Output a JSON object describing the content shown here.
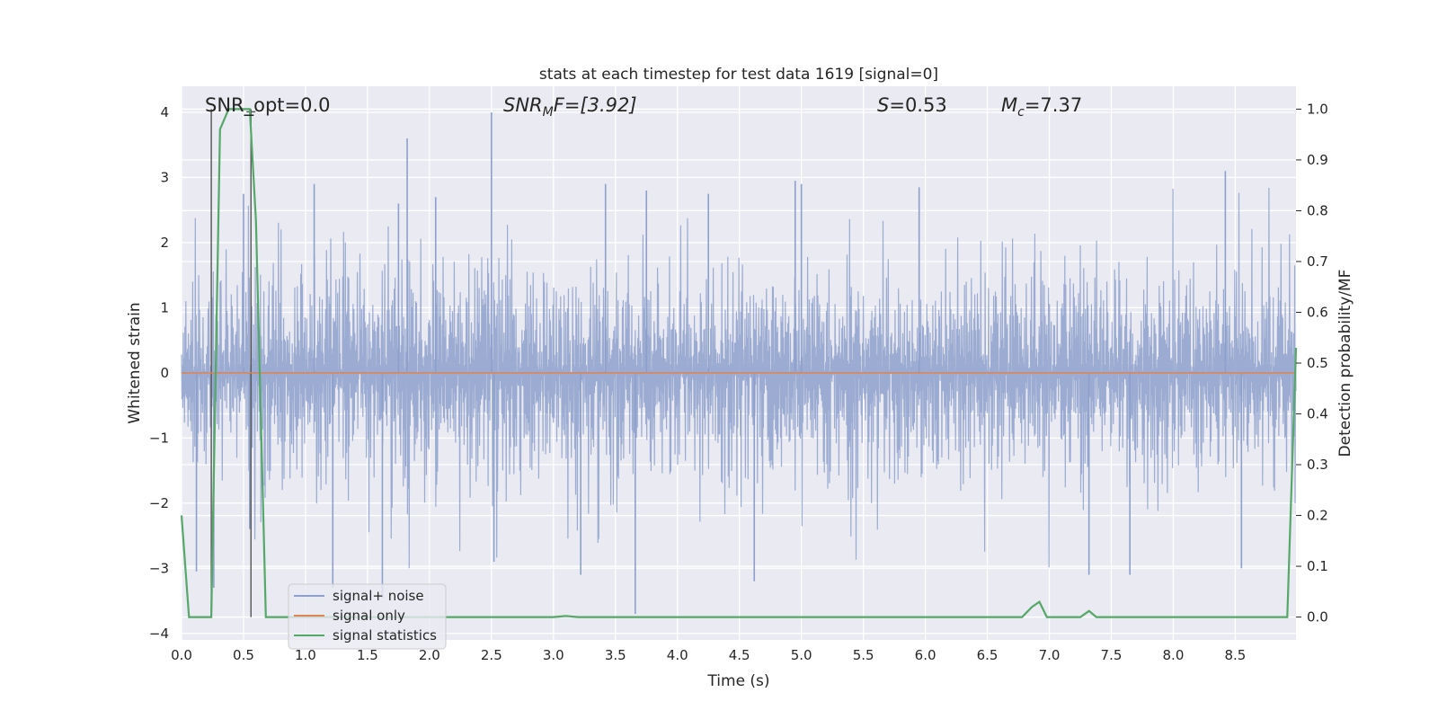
{
  "chart_data": {
    "type": "line",
    "title": "stats at each timestep for test data 1619 [signal=0]",
    "xlabel": "Time (s)",
    "ylabel": "Whitened strain",
    "y2label": "Detection probability/MF",
    "xlim": [
      0.0,
      8.99
    ],
    "ylim": [
      -4.1,
      4.4
    ],
    "y2lim": [
      -0.045,
      1.045
    ],
    "xticks": [
      "0.0",
      "0.5",
      "1.0",
      "1.5",
      "2.0",
      "2.5",
      "3.0",
      "3.5",
      "4.0",
      "4.5",
      "5.0",
      "5.5",
      "6.0",
      "6.5",
      "7.0",
      "7.5",
      "8.0",
      "8.5"
    ],
    "yticks": [
      "4",
      "3",
      "2",
      "1",
      "0",
      "−1",
      "−2",
      "−3",
      "−4"
    ],
    "y2ticks": [
      "1.0",
      "0.9",
      "0.8",
      "0.7",
      "0.6",
      "0.5",
      "0.4",
      "0.3",
      "0.2",
      "0.1",
      "0.0"
    ],
    "grid": true,
    "legend_position": "lower-left",
    "annotations": {
      "snr_opt": "SNR_opt=0.0",
      "snr_mf_sym": "SNR",
      "snr_mf_sub": "M",
      "snr_mf_rest": "F=[3.92]",
      "s_sym": "S",
      "s_rest": "=0.53",
      "mc_sym": "M",
      "mc_sub": "c",
      "mc_rest": "=7.37"
    },
    "markers": {
      "t_peak": 0.56,
      "t_start": 0.24
    },
    "series": [
      {
        "name": "signal+ noise",
        "color": "#8da0cb",
        "sample_rate_hz": 4096,
        "envelope_rms": 0.85,
        "spikes": [
          [
            0.12,
            -3.05
          ],
          [
            0.26,
            -3.3
          ],
          [
            0.5,
            2.75
          ],
          [
            0.55,
            -2.4
          ],
          [
            1.07,
            2.9
          ],
          [
            1.22,
            -3.3
          ],
          [
            1.62,
            -3.45
          ],
          [
            1.75,
            2.6
          ],
          [
            1.82,
            3.6
          ],
          [
            2.05,
            2.7
          ],
          [
            2.5,
            4.0
          ],
          [
            2.52,
            -2.9
          ],
          [
            3.22,
            -3.1
          ],
          [
            3.42,
            2.9
          ],
          [
            3.66,
            -3.7
          ],
          [
            3.75,
            2.8
          ],
          [
            4.25,
            2.75
          ],
          [
            4.62,
            -3.2
          ],
          [
            4.95,
            2.95
          ],
          [
            5.0,
            2.9
          ],
          [
            5.95,
            2.85
          ],
          [
            7.32,
            -3.1
          ],
          [
            7.65,
            -3.1
          ],
          [
            8.42,
            3.1
          ],
          [
            8.55,
            -3.0
          ]
        ]
      },
      {
        "name": "signal only",
        "color": "#dd8452",
        "values": "flat zero"
      },
      {
        "name": "signal statistics",
        "color": "#55a868",
        "axis": "right",
        "t": [
          0.0,
          0.06,
          0.2,
          0.24,
          0.31,
          0.38,
          0.42,
          0.55,
          0.6,
          0.68,
          0.8,
          3.0,
          3.1,
          3.2,
          6.78,
          6.86,
          6.92,
          6.98,
          7.25,
          7.32,
          7.38,
          8.92,
          8.99
        ],
        "p": [
          0.2,
          0.0,
          0.0,
          0.0,
          0.96,
          1.0,
          1.0,
          1.0,
          0.78,
          0.0,
          0.0,
          0.0,
          0.002,
          0.0,
          0.0,
          0.02,
          0.03,
          0.0,
          0.0,
          0.012,
          0.0,
          0.0,
          0.53
        ]
      }
    ]
  }
}
